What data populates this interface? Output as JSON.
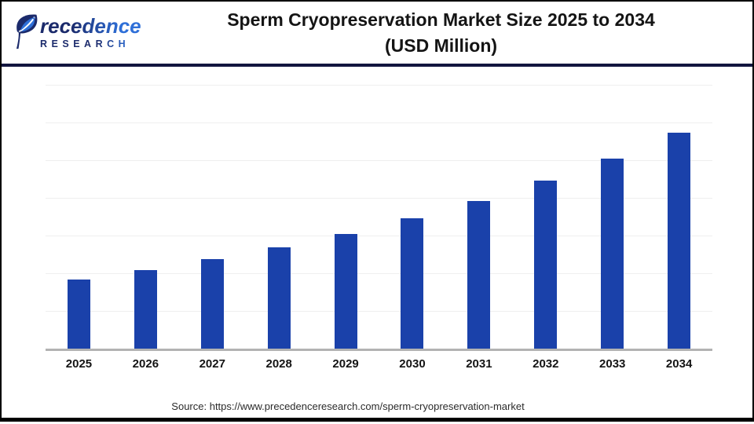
{
  "header": {
    "logo": {
      "brand": "Precedence",
      "brand_after_mark": "recedence",
      "brand_sub": "RESEARCH",
      "navy": "#1b2a6b",
      "blue": "#2e6fd8"
    },
    "title_line1": "Sperm Cryopreservation Market Size 2025 to 2034",
    "title_line2": "(USD Million)"
  },
  "chart_data": {
    "type": "bar",
    "title": "Sperm Cryopreservation Market Size 2025 to 2034 (USD Million)",
    "unit": "USD Million",
    "categories": [
      "2025",
      "2026",
      "2027",
      "2028",
      "2029",
      "2030",
      "2031",
      "2032",
      "2033",
      "2034"
    ],
    "values": [
      1420,
      1609,
      1824,
      2067,
      2343,
      2656,
      3010,
      3412,
      3867,
      4383
    ],
    "bar_color": "#1a41aa",
    "ylim": [
      0,
      5500
    ],
    "grid": true,
    "gridline_count": 7,
    "gridline_spacing_px": 48,
    "y_axis_labels": "none",
    "data_labels": "none",
    "legend": "none"
  },
  "footer": {
    "source": "Source: https://www.precedenceresearch.com/sperm-cryopreservation-market"
  },
  "colors": {
    "bar": "#1a41aa",
    "header_divider": "#12153f",
    "gridline": "#efefef",
    "axis_line": "#b3b3b3",
    "frame_border": "#000000"
  }
}
